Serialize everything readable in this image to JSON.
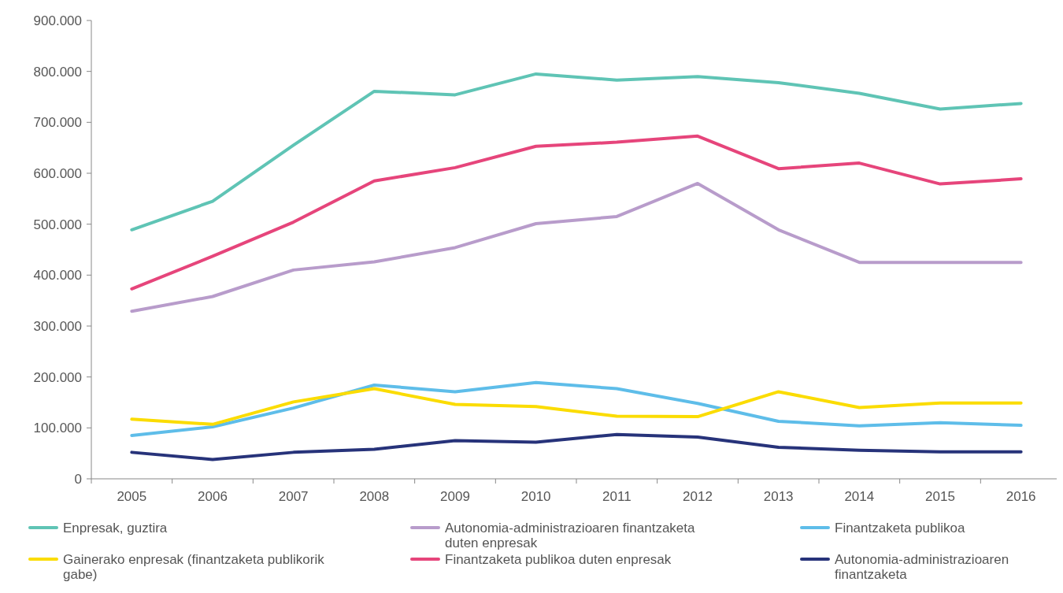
{
  "chart_data": {
    "type": "line",
    "categories": [
      "2005",
      "2006",
      "2007",
      "2008",
      "2009",
      "2010",
      "2011",
      "2012",
      "2013",
      "2014",
      "2015",
      "2016"
    ],
    "ylim": [
      0,
      900000
    ],
    "yticks": [
      0,
      {
        "value": 100000,
        "label": "100.000"
      },
      {
        "value": 200000,
        "label": "200.000"
      },
      {
        "value": 300000,
        "label": "300.000"
      },
      {
        "value": 400000,
        "label": "400.000"
      },
      {
        "value": 500000,
        "label": "500.000"
      },
      {
        "value": 600000,
        "label": "600.000"
      },
      {
        "value": 700000,
        "label": "700.000"
      },
      {
        "value": 800000,
        "label": "800.000"
      },
      {
        "value": 900000,
        "label": "900.000"
      }
    ],
    "grid": false,
    "legend": "bottom",
    "marker": "none",
    "line_style": "solid",
    "series": [
      {
        "name": "Enpresak, guztira",
        "color": "#5fc4b5",
        "values": [
          489000,
          545000,
          655000,
          761000,
          754000,
          795000,
          783000,
          790000,
          778000,
          757000,
          726000,
          737000
        ]
      },
      {
        "name": "Autonomia-administrazioaren finantzaketa duten enpresak",
        "color": "#b89ccb",
        "values": [
          329000,
          358000,
          410000,
          426000,
          454000,
          501000,
          515000,
          580000,
          489000,
          425000,
          425000,
          425000
        ]
      },
      {
        "name": "Finantzaketa publikoa",
        "color": "#5ebde9",
        "values": [
          85000,
          102000,
          139000,
          184000,
          171000,
          189000,
          177000,
          148000,
          113000,
          104000,
          110000,
          105000
        ]
      },
      {
        "name": "Gainerako enpresak (finantzaketa publikorik gabe)",
        "color": "#fbdc00",
        "values": [
          117000,
          107000,
          151000,
          177000,
          146000,
          142000,
          123000,
          122000,
          171000,
          140000,
          149000,
          149000
        ]
      },
      {
        "name": "Finantzaketa publikoa duten enpresak",
        "color": "#e6457b",
        "values": [
          373000,
          437000,
          504000,
          585000,
          611000,
          653000,
          661000,
          673000,
          609000,
          620000,
          579000,
          589000
        ]
      },
      {
        "name": "Autonomia-administrazioaren finantzaketa",
        "color": "#27337a",
        "values": [
          52000,
          38000,
          52000,
          58000,
          75000,
          72000,
          87000,
          82000,
          62000,
          56000,
          53000,
          53000
        ]
      }
    ]
  }
}
